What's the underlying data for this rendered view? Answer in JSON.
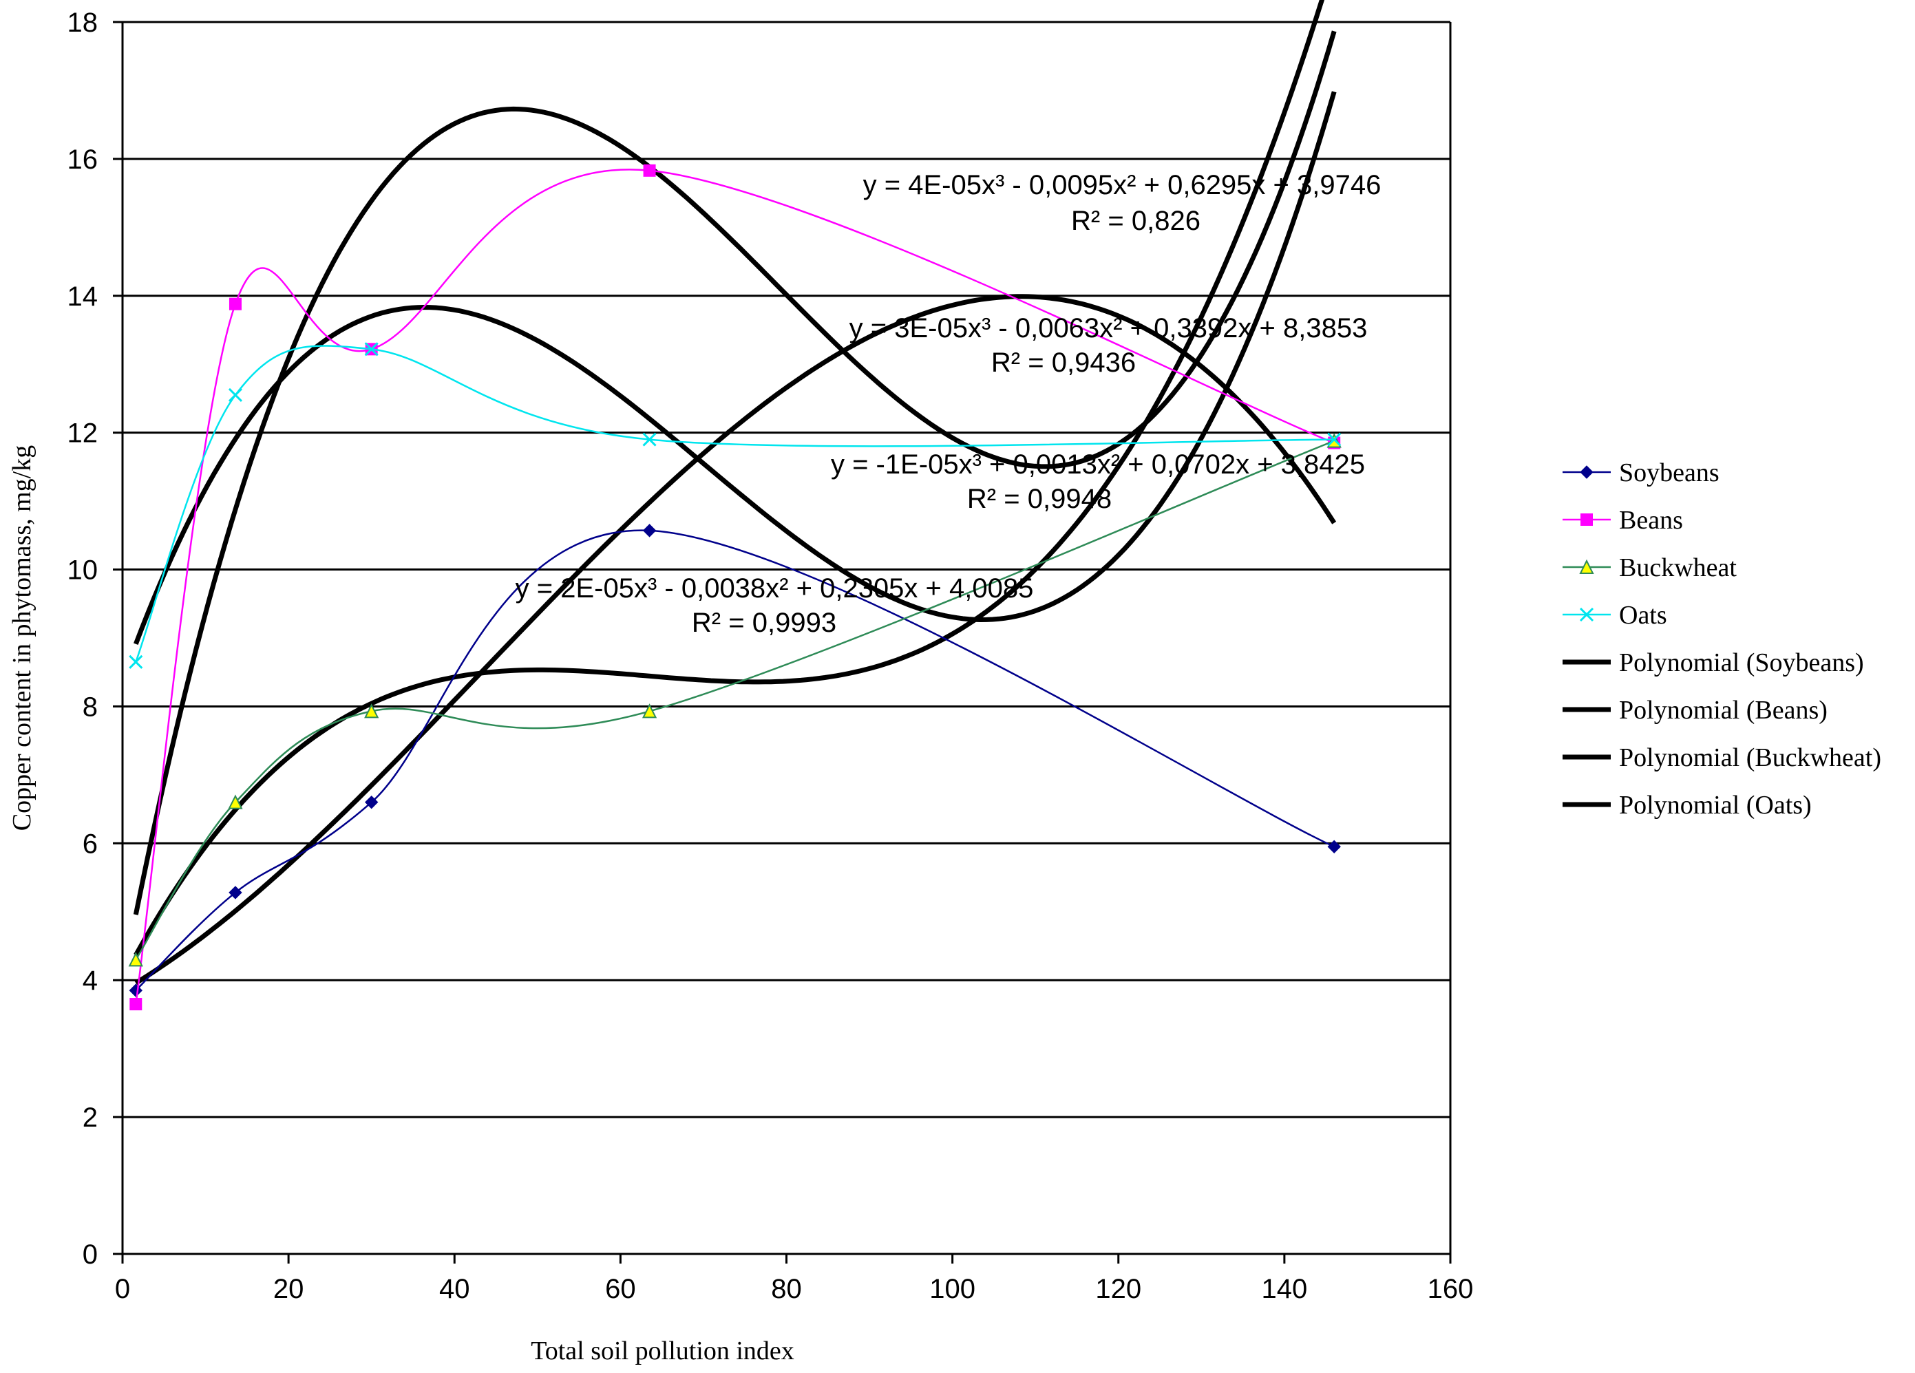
{
  "chart_data": {
    "type": "scatter",
    "title": "",
    "xlabel": "Total soil pollution index",
    "ylabel": "Copper content in phytomass, mg/kg",
    "xlim": [
      0,
      160
    ],
    "ylim": [
      0,
      18
    ],
    "x_ticks": [
      "0",
      "20",
      "40",
      "60",
      "80",
      "100",
      "120",
      "140",
      "160"
    ],
    "y_ticks": [
      "0",
      "2",
      "4",
      "6",
      "8",
      "10",
      "12",
      "14",
      "16",
      "18"
    ],
    "grid": "horizontal",
    "legend_position": "right",
    "series": [
      {
        "name": "Soybeans",
        "color": "#00008b",
        "marker": "diamond",
        "x": [
          1.6,
          13.6,
          30,
          63.5,
          146
        ],
        "y": [
          3.85,
          5.28,
          6.6,
          10.57,
          5.95
        ]
      },
      {
        "name": "Beans",
        "color": "#ff00ff",
        "marker": "square",
        "x": [
          1.6,
          13.6,
          30,
          63.5,
          146
        ],
        "y": [
          3.65,
          13.88,
          13.22,
          15.83,
          11.85
        ]
      },
      {
        "name": "Buckwheat",
        "color": "#2e8b57",
        "marker": "triangle",
        "x": [
          1.6,
          13.6,
          30,
          63.5,
          146
        ],
        "y": [
          4.3,
          6.6,
          7.93,
          7.93,
          11.88
        ]
      },
      {
        "name": "Oats",
        "color": "#00e5ee",
        "marker": "x",
        "x": [
          1.6,
          13.6,
          30,
          63.5,
          146
        ],
        "y": [
          8.65,
          12.55,
          13.22,
          11.9,
          11.9
        ]
      }
    ],
    "trendlines": [
      {
        "name": "Polynomial (Soybeans)",
        "color": "#000000",
        "coefficients": [
          4.0085,
          0.2305,
          -0.0038,
          2e-05
        ]
      },
      {
        "name": "Polynomial (Beans)",
        "color": "#000000",
        "coefficients": [
          3.9746,
          0.6295,
          -0.0095,
          4e-05
        ]
      },
      {
        "name": "Polynomial (Buckwheat)",
        "color": "#000000",
        "coefficients": [
          3.8425,
          0.0702,
          0.0013,
          -1e-05
        ]
      },
      {
        "name": "Polynomial (Oats)",
        "color": "#000000",
        "coefficients": [
          8.3853,
          0.3392,
          -0.0063,
          3e-05
        ]
      }
    ],
    "equations": [
      {
        "eq": "y = 4E-05x³ - 0,0095x² + 0,6295x + 3,9746",
        "r2": "R² = 0,826"
      },
      {
        "eq": "y = 3E-05x³ - 0,0063x² + 0,3392x + 8,3853",
        "r2": "R² = 0,9436"
      },
      {
        "eq": "y = -1E-05x³ + 0,0013x² + 0,0702x + 3,8425",
        "r2": "R² = 0,9948"
      },
      {
        "eq": "y = 2E-05x³ - 0,0038x² + 0,2305x + 4,0085",
        "r2": "R² = 0,9993"
      }
    ]
  }
}
